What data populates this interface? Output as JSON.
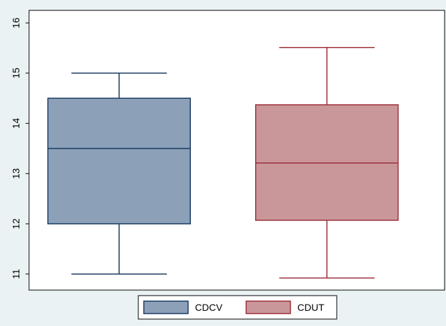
{
  "chart_data": {
    "type": "box",
    "series": [
      {
        "name": "CDCV",
        "color": "#8ca0b8",
        "stroke": "#1a3a60",
        "min": 11,
        "q1": 12,
        "median": 13.5,
        "q3": 14.5,
        "max": 15
      },
      {
        "name": "CDUT",
        "color": "#c9979a",
        "stroke": "#9c2f3a",
        "min": 10.92,
        "q1": 12.07,
        "median": 13.21,
        "q3": 14.37,
        "max": 15.51
      }
    ],
    "ylim": [
      10.68,
      16.25
    ],
    "yticks": [
      11,
      12,
      13,
      14,
      15,
      16
    ],
    "grid": false,
    "legend": "bottom"
  }
}
